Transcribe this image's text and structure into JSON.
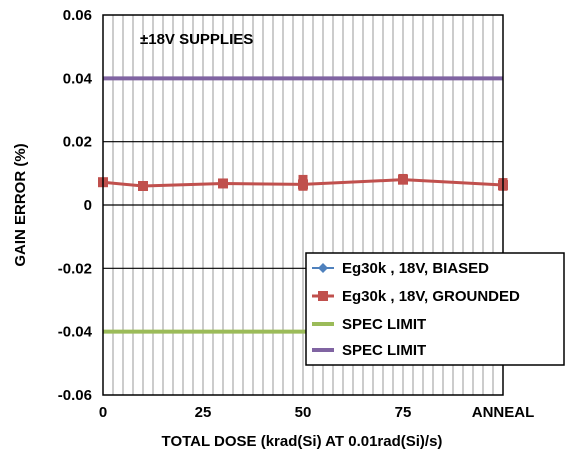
{
  "chart_data": {
    "type": "line",
    "annotation": "±18V SUPPLIES",
    "xlabel": "TOTAL DOSE (krad(Si) AT 0.01rad(Si)/s)",
    "ylabel": "GAIN ERROR (%)",
    "ylim": [
      -0.06,
      0.06
    ],
    "y_ticks": [
      "0.06",
      "0.04",
      "0.02",
      "0",
      "-0.02",
      "-0.04",
      "-0.06"
    ],
    "x_ticks": [
      "0",
      "25",
      "50",
      "75",
      "ANNEAL"
    ],
    "grid": true,
    "legend_position": "bottom-right",
    "series": [
      {
        "name": "Eg30k , 18V, BIASED",
        "color": "#4F81BD",
        "marker": "diamond",
        "x": [],
        "values": []
      },
      {
        "name": "Eg30k , 18V, GROUNDED",
        "color": "#C0504D",
        "marker": "square",
        "x": [
          0,
          10,
          30,
          50,
          75,
          100
        ],
        "values": [
          0.0072,
          0.006,
          0.0068,
          0.0065,
          0.008,
          0.0063
        ],
        "range_high": [
          0.008,
          0.0068,
          0.0078,
          0.0095,
          0.0098,
          0.0085
        ],
        "range_low": [
          0.0066,
          0.0052,
          0.0058,
          0.0045,
          0.0066,
          0.0045
        ]
      },
      {
        "name": "SPEC LIMIT",
        "color": "#9BBB59",
        "marker": "none",
        "x": [
          0,
          100
        ],
        "values": [
          -0.04,
          -0.04
        ]
      },
      {
        "name": "SPEC LIMIT",
        "color": "#8064A2",
        "marker": "none",
        "x": [
          0,
          100
        ],
        "values": [
          0.04,
          0.04
        ]
      }
    ]
  }
}
